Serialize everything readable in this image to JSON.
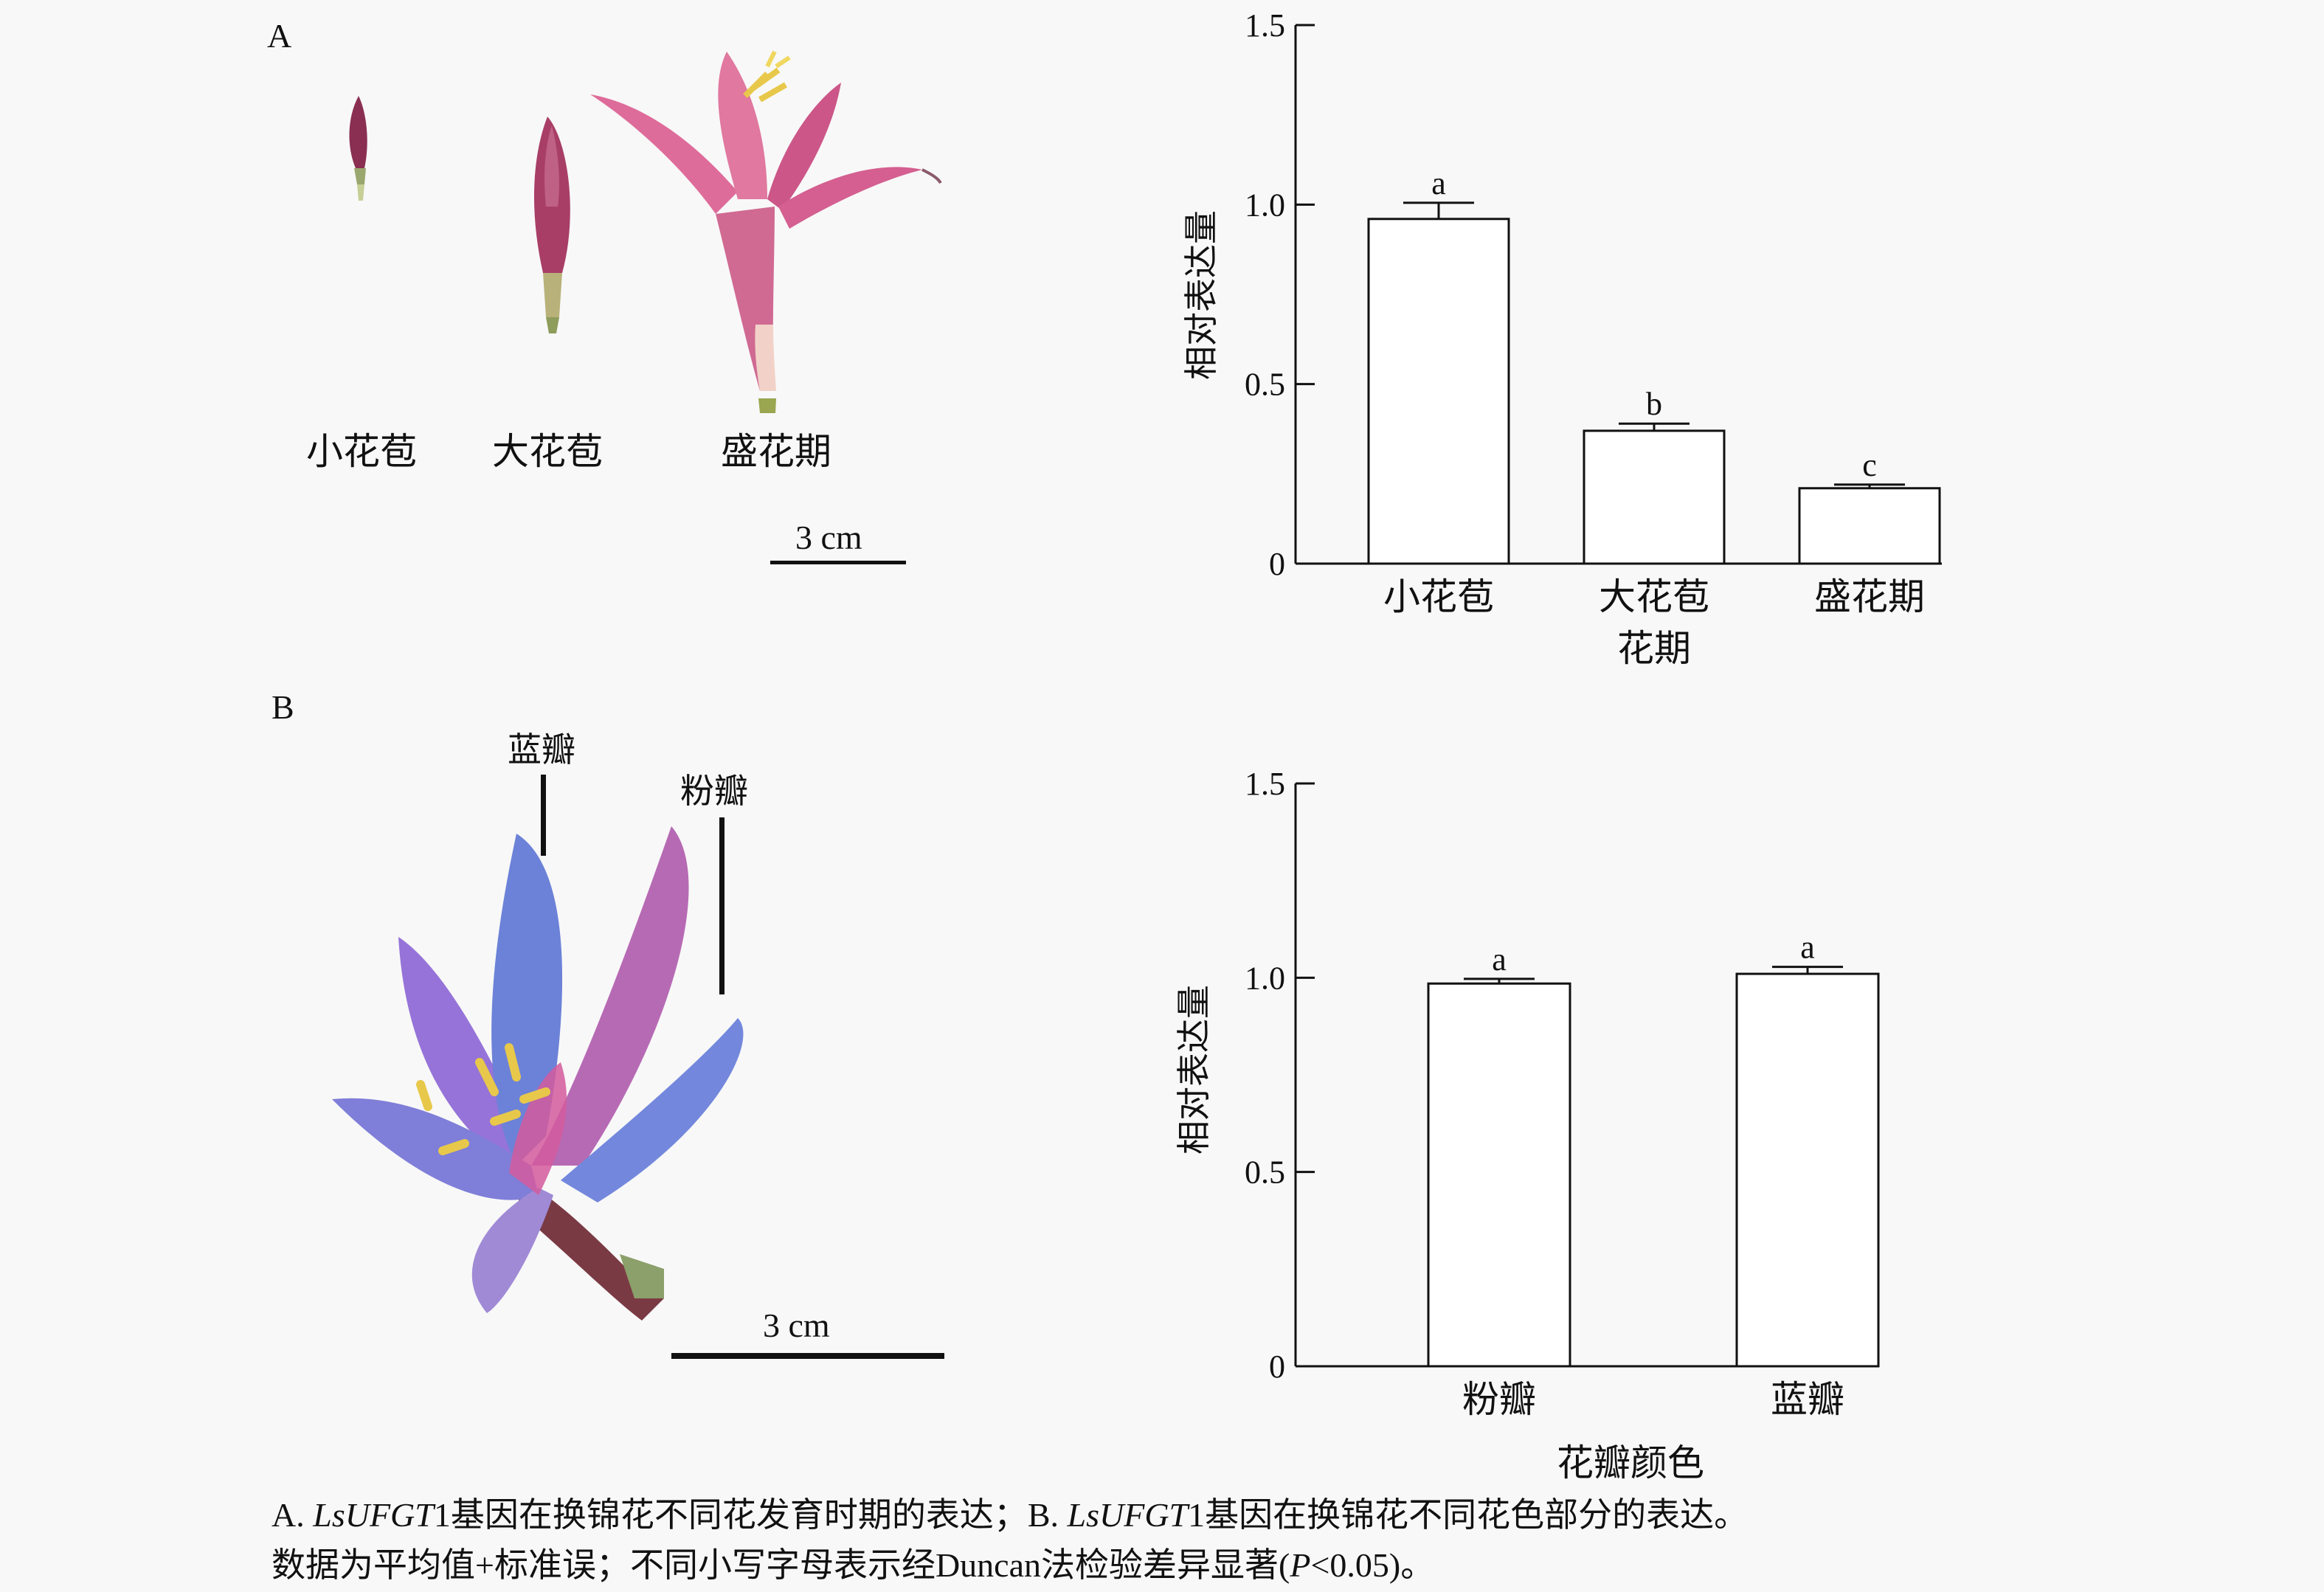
{
  "panelA": {
    "letter": "A",
    "stages": [
      "小花苞",
      "大花苞",
      "盛花期"
    ],
    "scale_label": "3 cm"
  },
  "panelB": {
    "letter": "B",
    "labels": {
      "blue": "蓝瓣",
      "pink": "粉瓣"
    },
    "scale_label": "3 cm"
  },
  "caption": {
    "line1": {
      "a_prefix": "A. ",
      "a_gene": "LsUFGT",
      "a_text": "1基因在换锦花不同花发育时期的表达；B. ",
      "b_gene": "LsUFGT",
      "b_text": "1基因在换锦花不同花色部分的表达。"
    },
    "line2": {
      "text": "数据为平均值+标准误；不同小写字母表示经Duncan法检验差异显著(",
      "p": "P",
      "rest": "<0.05)。"
    }
  },
  "colors": {
    "bar_fill": "#ffffff",
    "stroke": "#111111",
    "pink_flower": "#d8588f",
    "blue_petal": "#6a82d8",
    "stamen": "#e8c84a"
  },
  "chart_data": [
    {
      "type": "bar",
      "categories": [
        "小花苞",
        "大花苞",
        "盛花期"
      ],
      "category_lines": [
        [
          "小花苞"
        ],
        [
          "大花苞",
          "花期"
        ],
        [
          "盛花期"
        ]
      ],
      "values": [
        0.96,
        0.37,
        0.21
      ],
      "errors": [
        0.045,
        0.02,
        0.01
      ],
      "significance": [
        "a",
        "b",
        "c"
      ],
      "ylabel": "相对表达量",
      "xlabel": "",
      "ylim": [
        0,
        1.5
      ],
      "yticks": [
        0,
        0.5,
        1.0,
        1.5
      ],
      "ytick_labels": [
        "0",
        "0.5",
        "1.0",
        "1.5"
      ]
    },
    {
      "type": "bar",
      "categories": [
        "粉瓣",
        "蓝瓣"
      ],
      "category_lines": [
        [
          "粉瓣"
        ],
        [
          "蓝瓣"
        ]
      ],
      "values": [
        0.985,
        1.01
      ],
      "errors": [
        0.012,
        0.018
      ],
      "significance": [
        "a",
        "a"
      ],
      "ylabel": "相对表达量",
      "xlabel": "花瓣颜色",
      "ylim": [
        0,
        1.5
      ],
      "yticks": [
        0,
        0.5,
        1.0,
        1.5
      ],
      "ytick_labels": [
        "0",
        "0.5",
        "1.0",
        "1.5"
      ]
    }
  ]
}
